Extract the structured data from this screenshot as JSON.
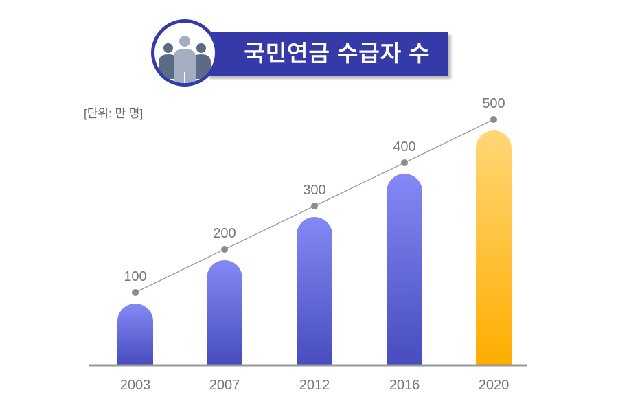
{
  "chart_data": {
    "type": "bar",
    "title": "국민연금 수급자 수",
    "unit_label": "[단위: 만 명]",
    "categories": [
      "2003",
      "2007",
      "2012",
      "2016",
      "2020"
    ],
    "values": [
      100,
      200,
      300,
      400,
      500
    ],
    "overlay": "line with markers connecting values",
    "highlight_category": "2020",
    "colors": {
      "bar_top": "#8589F6",
      "bar_bottom": "#474CBE",
      "highlight_top": "#FFD778",
      "highlight_bottom": "#FFAD00",
      "line": "#999999",
      "marker": "#8C8C8C",
      "banner": "#363AA8"
    },
    "grid": false,
    "icon": "people-group-icon"
  }
}
